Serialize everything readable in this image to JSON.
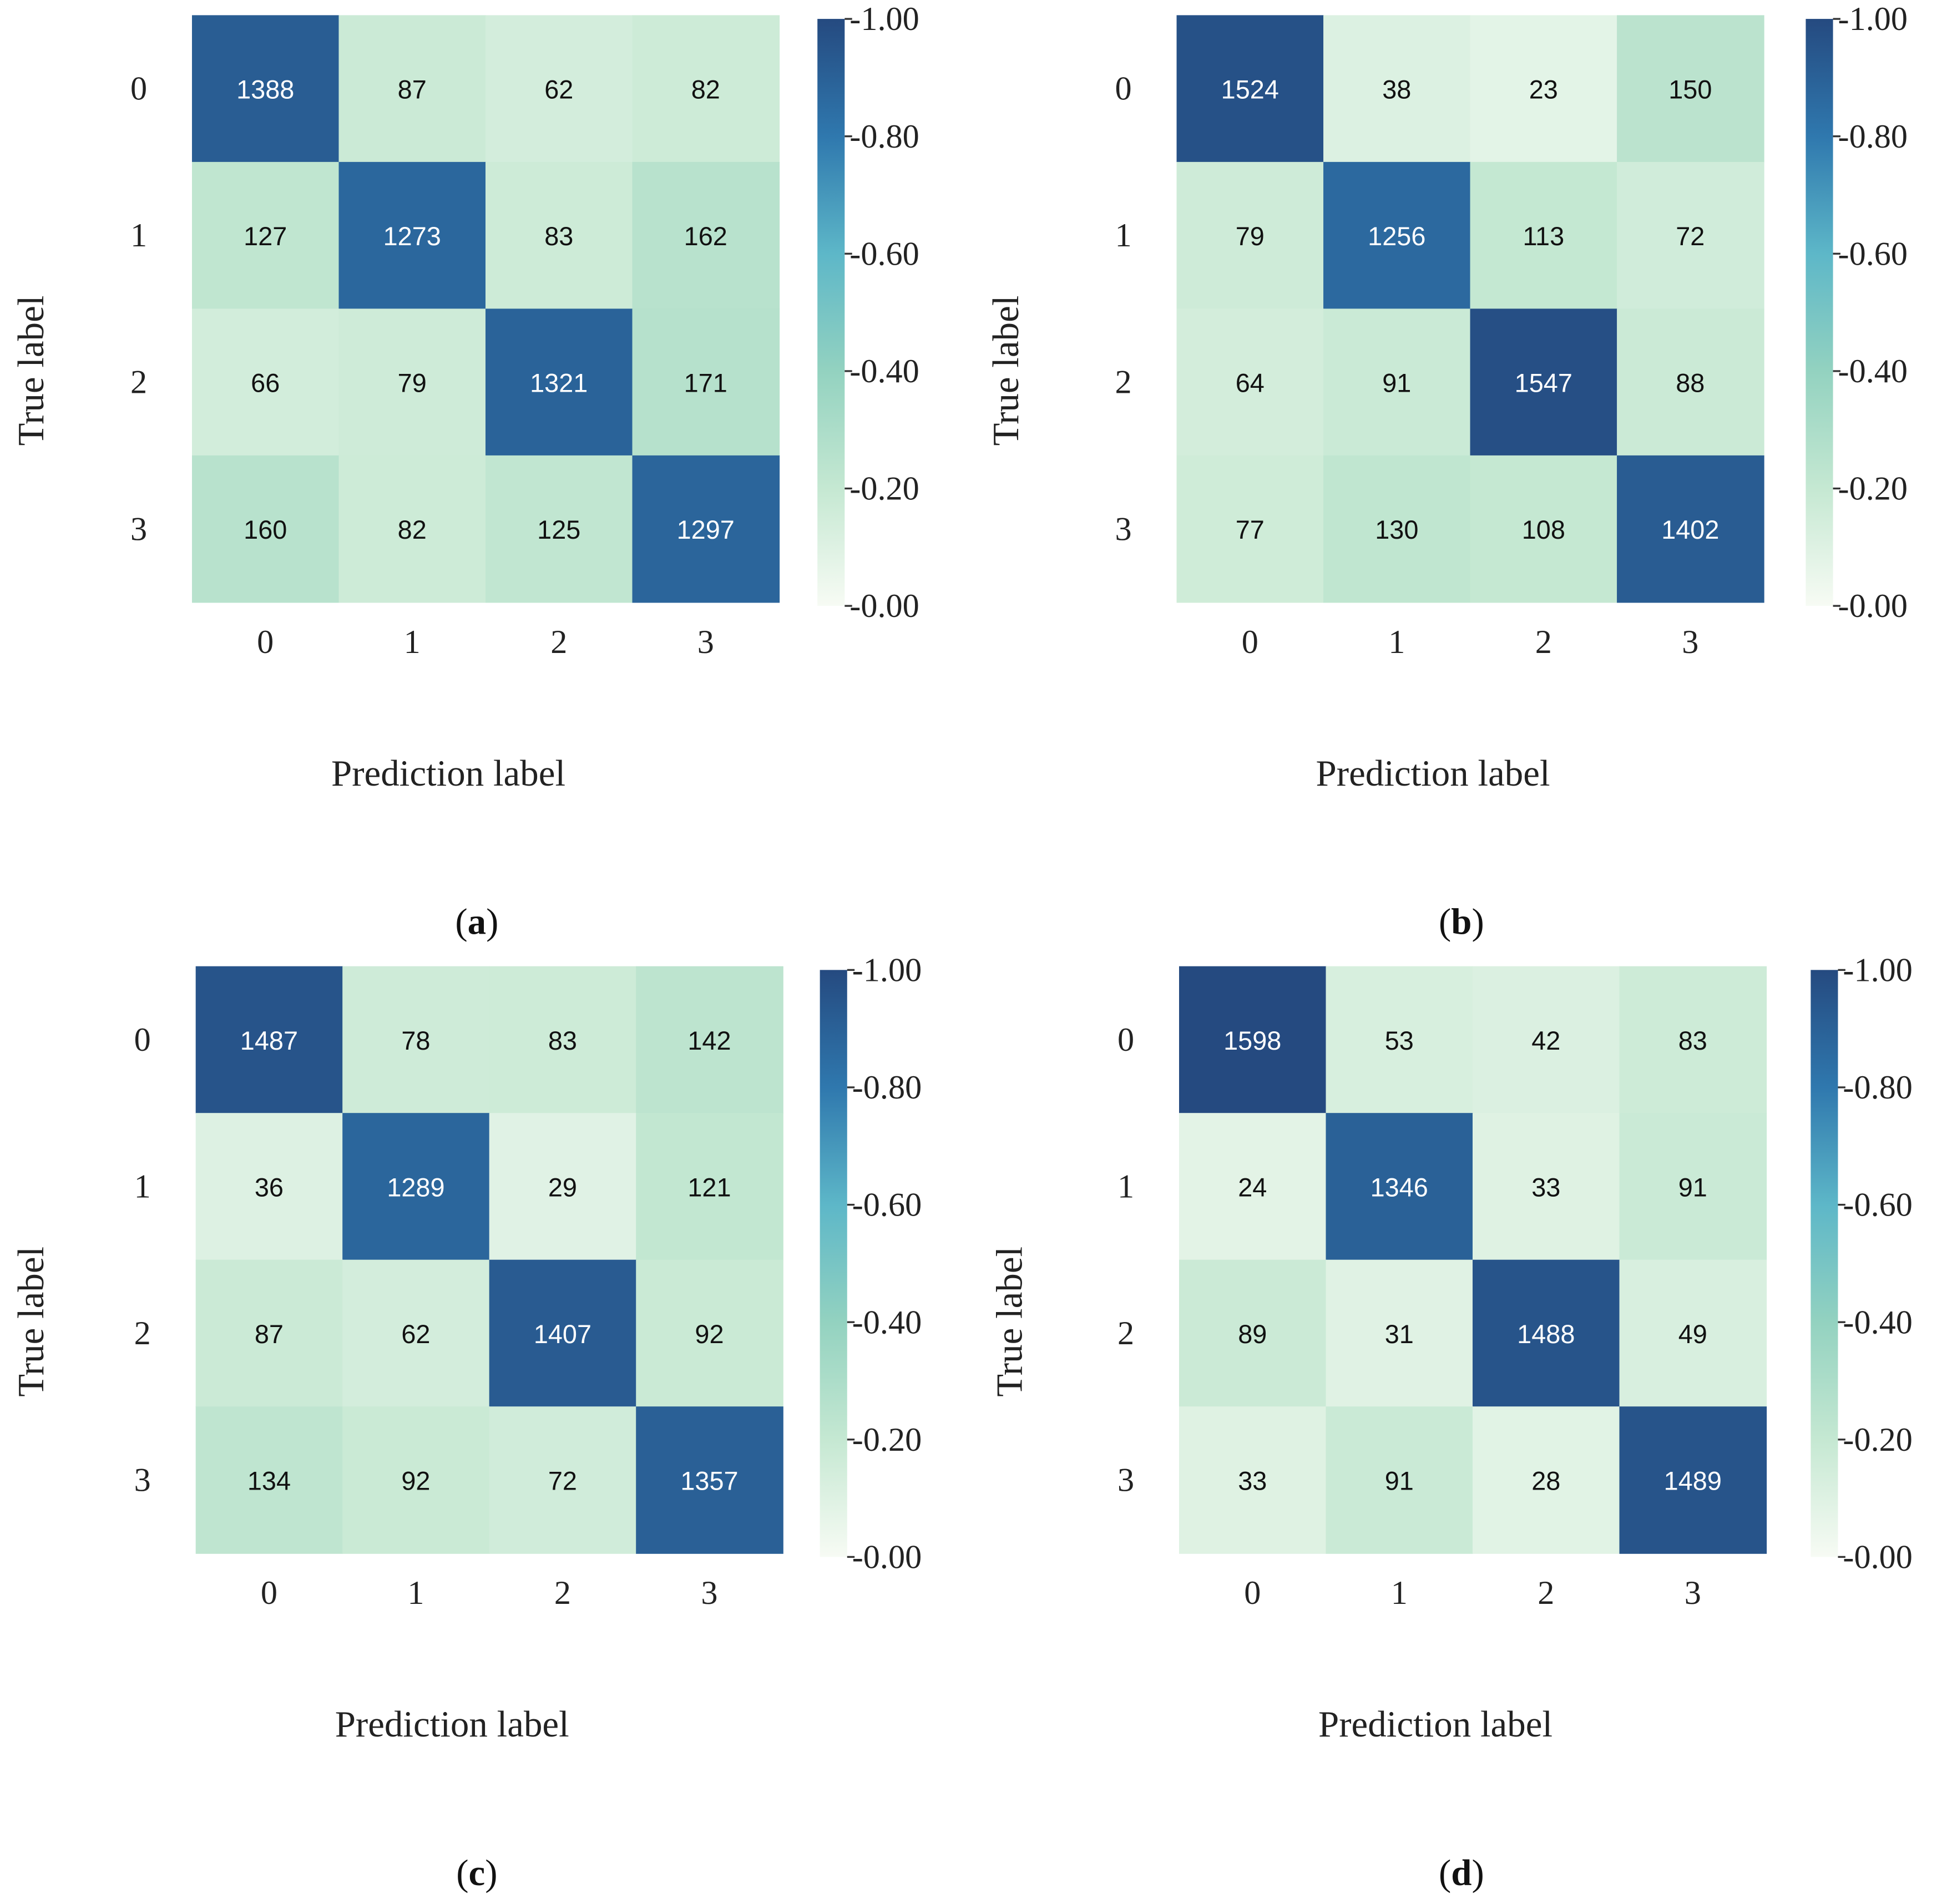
{
  "chart_data": [
    {
      "type": "heatmap",
      "caption": "a",
      "xlabel": "Prediction label",
      "ylabel": "True label",
      "x_ticks": [
        "0",
        "1",
        "2",
        "3"
      ],
      "y_ticks": [
        "0",
        "1",
        "2",
        "3"
      ],
      "matrix": [
        [
          1388,
          87,
          62,
          82
        ],
        [
          127,
          1273,
          83,
          162
        ],
        [
          66,
          79,
          1321,
          171
        ],
        [
          160,
          82,
          125,
          1297
        ]
      ],
      "colorbar": {
        "range": [
          0,
          1
        ],
        "ticks": [
          "0.00",
          "0.20",
          "0.40",
          "0.60",
          "0.80",
          "1.00"
        ]
      }
    },
    {
      "type": "heatmap",
      "caption": "b",
      "xlabel": "Prediction label",
      "ylabel": "True label",
      "x_ticks": [
        "0",
        "1",
        "2",
        "3"
      ],
      "y_ticks": [
        "0",
        "1",
        "2",
        "3"
      ],
      "matrix": [
        [
          1524,
          38,
          23,
          150
        ],
        [
          79,
          1256,
          113,
          72
        ],
        [
          64,
          91,
          1547,
          88
        ],
        [
          77,
          130,
          108,
          1402
        ]
      ],
      "colorbar": {
        "range": [
          0,
          1
        ],
        "ticks": [
          "0.00",
          "0.20",
          "0.40",
          "0.60",
          "0.80",
          "1.00"
        ]
      }
    },
    {
      "type": "heatmap",
      "caption": "c",
      "xlabel": "Prediction label",
      "ylabel": "True label",
      "x_ticks": [
        "0",
        "1",
        "2",
        "3"
      ],
      "y_ticks": [
        "0",
        "1",
        "2",
        "3"
      ],
      "matrix": [
        [
          1487,
          78,
          83,
          142
        ],
        [
          36,
          1289,
          29,
          121
        ],
        [
          87,
          62,
          1407,
          92
        ],
        [
          134,
          92,
          72,
          1357
        ]
      ],
      "colorbar": {
        "range": [
          0,
          1
        ],
        "ticks": [
          "0.00",
          "0.20",
          "0.40",
          "0.60",
          "0.80",
          "1.00"
        ]
      }
    },
    {
      "type": "heatmap",
      "caption": "d",
      "xlabel": "Prediction label",
      "ylabel": "True label",
      "x_ticks": [
        "0",
        "1",
        "2",
        "3"
      ],
      "y_ticks": [
        "0",
        "1",
        "2",
        "3"
      ],
      "matrix": [
        [
          1598,
          53,
          42,
          83
        ],
        [
          24,
          1346,
          33,
          91
        ],
        [
          89,
          31,
          1488,
          49
        ],
        [
          33,
          91,
          28,
          1489
        ]
      ],
      "colorbar": {
        "range": [
          0,
          1
        ],
        "ticks": [
          "0.00",
          "0.20",
          "0.40",
          "0.60",
          "0.80",
          "1.00"
        ]
      }
    }
  ],
  "colors": {
    "c0": "#f7fbf4",
    "c20": "#c5e8d2",
    "c40": "#93d2c0",
    "c60": "#5db7c8",
    "c80": "#2f78ae",
    "c100": "#254a80"
  }
}
